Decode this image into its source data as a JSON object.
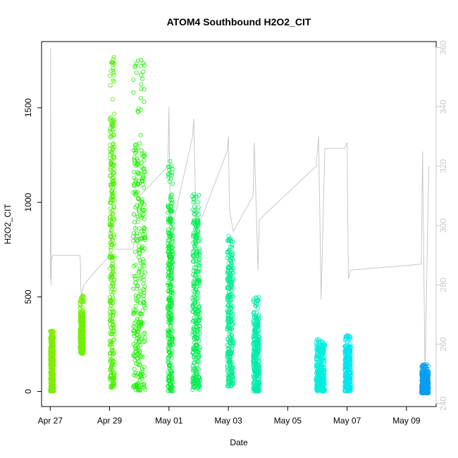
{
  "chart_data": {
    "type": "scatter",
    "title": "ATOM4 Southbound H2O2_CIT",
    "xlabel": "Date",
    "ylabel": "H2O2_CIT",
    "x_range": [
      "2018-04-26T17:00",
      "2018-05-10T00:00"
    ],
    "y_range": [
      -80,
      1850
    ],
    "y2_range": [
      239,
      362
    ],
    "x_ticks": [
      {
        "date": "2018-04-27",
        "label": "Apr 27"
      },
      {
        "date": "2018-04-29",
        "label": "Apr 29"
      },
      {
        "date": "2018-05-01",
        "label": "May 01"
      },
      {
        "date": "2018-05-03",
        "label": "May 03"
      },
      {
        "date": "2018-05-05",
        "label": "May 05"
      },
      {
        "date": "2018-05-07",
        "label": "May 07"
      },
      {
        "date": "2018-05-09",
        "label": "May 09"
      }
    ],
    "y_ticks": [
      0,
      500,
      1000,
      1500
    ],
    "y2_ticks": [
      240,
      260,
      280,
      300,
      320,
      340,
      360
    ],
    "grid": false,
    "legend": "none",
    "flights": [
      {
        "start": "2018-04-27T00:00",
        "end": "2018-04-27T03:00",
        "min": 0,
        "max": 320,
        "dense_max": 310,
        "color": "#7fee00"
      },
      {
        "start": "2018-04-28T00:00",
        "end": "2018-04-28T03:00",
        "min": 200,
        "max": 510,
        "dense_max": 420,
        "color": "#6ff000"
      },
      {
        "start": "2018-04-29T00:00",
        "end": "2018-04-29T04:00",
        "min": 20,
        "max": 1780,
        "dense_max": 1450,
        "color": "#4cf000"
      },
      {
        "start": "2018-04-29T19:00",
        "end": "2018-04-30T05:00",
        "min": 5,
        "max": 1760,
        "dense_max": 1300,
        "color": "#1cf000"
      },
      {
        "start": "2018-04-30T23:00",
        "end": "2018-05-01T03:00",
        "min": 0,
        "max": 1220,
        "dense_max": 1000,
        "color": "#00ee30"
      },
      {
        "start": "2018-05-01T19:00",
        "end": "2018-05-02T01:00",
        "min": 5,
        "max": 1060,
        "dense_max": 950,
        "color": "#00ee55"
      },
      {
        "start": "2018-05-02T23:00",
        "end": "2018-05-03T04:00",
        "min": 25,
        "max": 840,
        "dense_max": 750,
        "color": "#00ee90"
      },
      {
        "start": "2018-05-03T20:00",
        "end": "2018-05-04T01:00",
        "min": 0,
        "max": 500,
        "dense_max": 400,
        "color": "#00eeaa"
      },
      {
        "start": "2018-05-05T23:00",
        "end": "2018-05-06T06:00",
        "min": 0,
        "max": 280,
        "dense_max": 250,
        "color": "#00eedd"
      },
      {
        "start": "2018-05-06T22:00",
        "end": "2018-05-07T03:00",
        "min": 0,
        "max": 300,
        "dense_max": 240,
        "color": "#00e6ee"
      },
      {
        "start": "2018-05-09T12:00",
        "end": "2018-05-09T18:00",
        "min": -10,
        "max": 150,
        "dense_max": 110,
        "color": "#0a9ef0"
      }
    ],
    "y2_series": {
      "name": "",
      "color": "#c8c8c8",
      "points": [
        [
          "2018-04-27T00:00",
          282
        ],
        [
          "2018-04-27T00:20",
          360
        ],
        [
          "2018-04-27T00:40",
          280
        ],
        [
          "2018-04-27T01:00",
          288
        ],
        [
          "2018-04-27T02:00",
          290
        ],
        [
          "2018-04-28T00:00",
          290
        ],
        [
          "2018-04-28T00:20",
          288
        ],
        [
          "2018-04-28T01:00",
          275
        ],
        [
          "2018-04-28T02:00",
          278
        ],
        [
          "2018-04-28T03:00",
          280
        ],
        [
          "2018-04-29T00:00",
          290
        ],
        [
          "2018-04-29T01:00",
          300
        ],
        [
          "2018-04-29T02:00",
          295
        ],
        [
          "2018-04-29T04:00",
          292
        ],
        [
          "2018-04-29T19:00",
          292
        ],
        [
          "2018-04-30T00:00",
          310
        ],
        [
          "2018-04-30T05:00",
          312
        ],
        [
          "2018-04-30T23:00",
          320
        ],
        [
          "2018-05-01T00:00",
          340
        ],
        [
          "2018-05-01T01:00",
          300
        ],
        [
          "2018-05-01T03:00",
          300
        ],
        [
          "2018-05-01T19:00",
          330
        ],
        [
          "2018-05-01T20:00",
          336
        ],
        [
          "2018-05-01T22:00",
          300
        ],
        [
          "2018-05-02T01:00",
          301
        ],
        [
          "2018-05-02T23:00",
          325
        ],
        [
          "2018-05-03T00:00",
          330
        ],
        [
          "2018-05-03T01:00",
          305
        ],
        [
          "2018-05-03T04:00",
          298
        ],
        [
          "2018-05-03T20:00",
          310
        ],
        [
          "2018-05-03T21:00",
          328
        ],
        [
          "2018-05-04T00:00",
          285
        ],
        [
          "2018-05-04T01:00",
          302
        ],
        [
          "2018-05-05T23:00",
          320
        ],
        [
          "2018-05-06T01:00",
          330
        ],
        [
          "2018-05-06T03:00",
          275
        ],
        [
          "2018-05-06T06:00",
          326
        ],
        [
          "2018-05-06T22:00",
          326
        ],
        [
          "2018-05-07T00:00",
          328
        ],
        [
          "2018-05-07T01:00",
          282
        ],
        [
          "2018-05-07T03:00",
          285
        ],
        [
          "2018-05-09T12:00",
          287
        ],
        [
          "2018-05-09T13:00",
          325
        ],
        [
          "2018-05-09T15:00",
          250
        ],
        [
          "2018-05-09T18:00",
          320
        ]
      ]
    }
  }
}
